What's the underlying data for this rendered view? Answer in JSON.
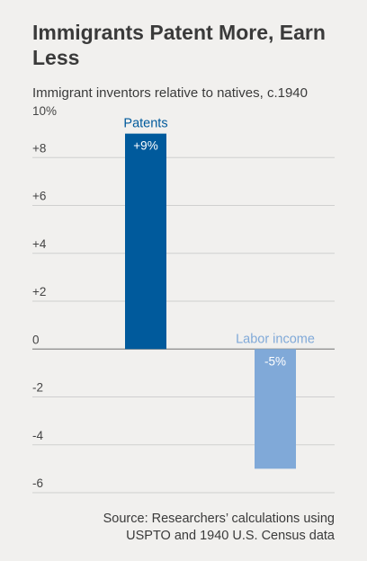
{
  "title": "Immigrants Patent More, Earn Less",
  "subtitle": "Immigrant inventors relative to natives, c.1940",
  "source_lines": [
    "Source: Researchers’ calculations using",
    "USPTO and 1940 U.S. Census data"
  ],
  "chart_data": {
    "type": "bar",
    "categories": [
      "Patents",
      "Labor income"
    ],
    "values": [
      9,
      -5
    ],
    "data_labels": [
      "+9%",
      "-5%"
    ],
    "colors": [
      "#005a9c",
      "#80a9d8"
    ],
    "ylim": [
      -6,
      10
    ],
    "yticks": [
      -6,
      -4,
      -2,
      0,
      2,
      4,
      6,
      8,
      10
    ],
    "ytick_labels": [
      "-6",
      "-4",
      "-2",
      "0",
      "+2",
      "+4",
      "+6",
      "+8",
      "10%"
    ],
    "grid": true,
    "xlabel": "",
    "ylabel": ""
  }
}
